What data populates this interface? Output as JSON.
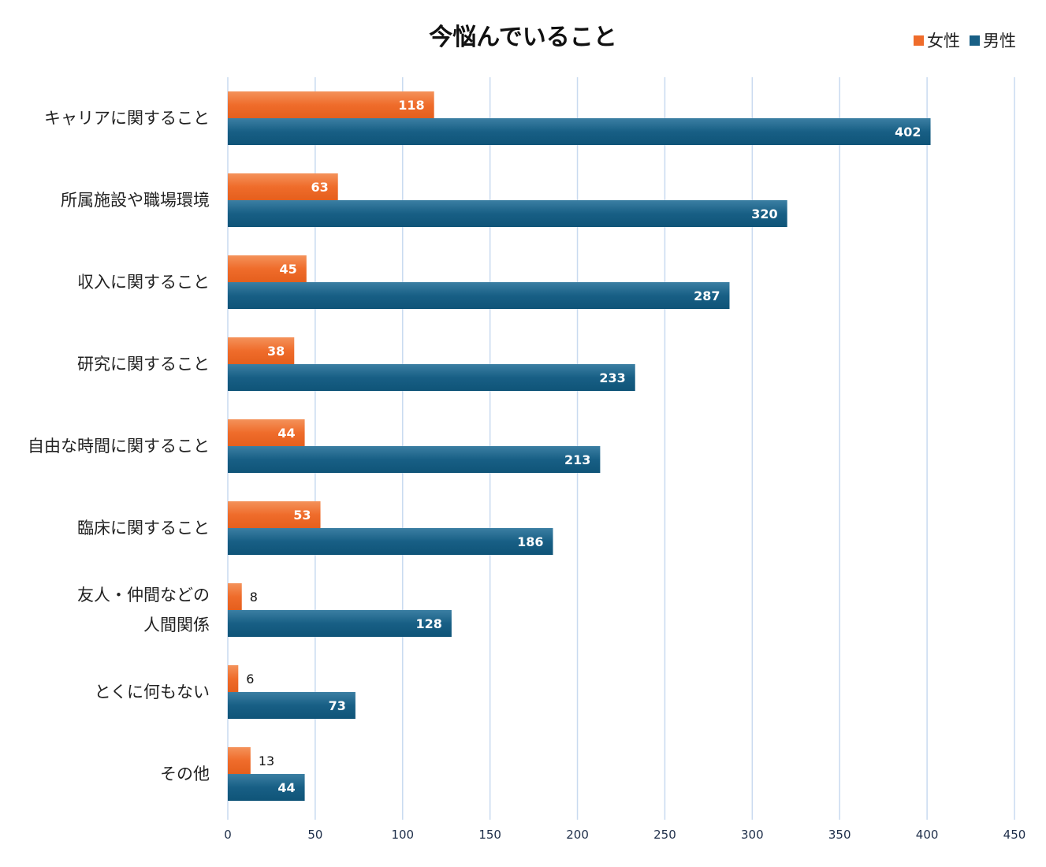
{
  "chart_data": {
    "type": "bar",
    "orientation": "horizontal",
    "title": "今悩んでいること",
    "categories": [
      "キャリアに関すること",
      "所属施設や職場環境",
      "収入に関すること",
      "研究に関すること",
      "自由な時間に関すること",
      "臨床に関すること",
      "友人・仲間などの\n人間関係",
      "とくに何もない",
      "その他"
    ],
    "series": [
      {
        "name": "女性",
        "color": "#ef6c2b",
        "values": [
          118,
          63,
          45,
          38,
          44,
          53,
          8,
          6,
          13
        ]
      },
      {
        "name": "男性",
        "color": "#185f85",
        "values": [
          402,
          320,
          287,
          233,
          213,
          186,
          128,
          73,
          44
        ]
      }
    ],
    "xlim": [
      0,
      450
    ],
    "xticks": [
      0,
      50,
      100,
      150,
      200,
      250,
      300,
      350,
      400,
      450
    ],
    "grid": true,
    "legend_position": "top-right"
  }
}
